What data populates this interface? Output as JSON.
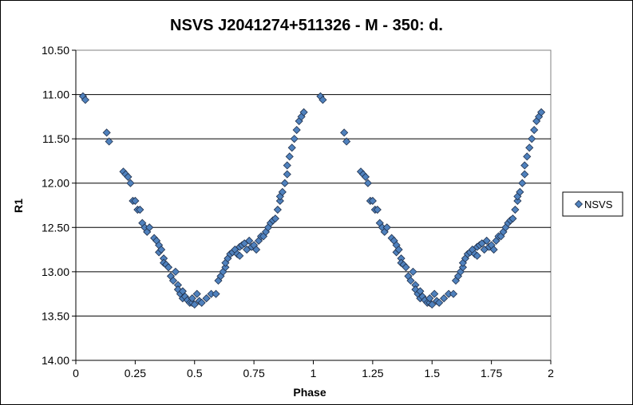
{
  "chart_data": {
    "type": "scatter",
    "title": "NSVS J2041274+511326  - M - 350: d.",
    "xlabel": "Phase",
    "ylabel": "R1",
    "xlim": [
      0,
      2
    ],
    "ylim": [
      10.5,
      14.0
    ],
    "y_inverted": true,
    "x_ticks": [
      "0",
      "0.25",
      "0.5",
      "0.75",
      "1",
      "1.25",
      "1.5",
      "1.75",
      "2"
    ],
    "y_ticks": [
      "10.50",
      "11.00",
      "11.50",
      "12.00",
      "12.50",
      "13.00",
      "13.50",
      "14.00"
    ],
    "grid": "horizontal",
    "legend_position": "right",
    "marker": "diamond",
    "marker_color": "#4F81BD",
    "series": [
      {
        "name": "NSVS",
        "x": [
          0.03,
          0.04,
          0.13,
          0.14,
          0.2,
          0.21,
          0.22,
          0.23,
          0.24,
          0.25,
          0.26,
          0.27,
          0.28,
          0.29,
          0.3,
          0.31,
          0.33,
          0.34,
          0.35,
          0.35,
          0.36,
          0.37,
          0.37,
          0.38,
          0.39,
          0.4,
          0.41,
          0.42,
          0.43,
          0.43,
          0.44,
          0.45,
          0.45,
          0.46,
          0.47,
          0.48,
          0.49,
          0.49,
          0.5,
          0.51,
          0.52,
          0.53,
          0.55,
          0.57,
          0.59,
          0.6,
          0.61,
          0.62,
          0.63,
          0.63,
          0.64,
          0.65,
          0.66,
          0.67,
          0.68,
          0.69,
          0.69,
          0.7,
          0.71,
          0.72,
          0.73,
          0.74,
          0.75,
          0.76,
          0.77,
          0.78,
          0.79,
          0.8,
          0.81,
          0.82,
          0.83,
          0.84,
          0.85,
          0.86,
          0.86,
          0.87,
          0.88,
          0.89,
          0.89,
          0.9,
          0.91,
          0.92,
          0.93,
          0.94,
          0.95,
          0.96,
          1.03,
          1.04,
          1.13,
          1.14,
          1.2,
          1.21,
          1.22,
          1.23,
          1.24,
          1.25,
          1.26,
          1.27,
          1.28,
          1.29,
          1.3,
          1.31,
          1.33,
          1.34,
          1.35,
          1.35,
          1.36,
          1.37,
          1.37,
          1.38,
          1.39,
          1.4,
          1.41,
          1.42,
          1.43,
          1.43,
          1.44,
          1.45,
          1.45,
          1.46,
          1.47,
          1.48,
          1.49,
          1.49,
          1.5,
          1.51,
          1.52,
          1.53,
          1.55,
          1.57,
          1.59,
          1.6,
          1.61,
          1.62,
          1.63,
          1.63,
          1.64,
          1.65,
          1.66,
          1.67,
          1.68,
          1.69,
          1.69,
          1.7,
          1.71,
          1.72,
          1.73,
          1.74,
          1.75,
          1.76,
          1.77,
          1.78,
          1.79,
          1.8,
          1.81,
          1.82,
          1.83,
          1.84,
          1.85,
          1.86,
          1.86,
          1.87,
          1.88,
          1.89,
          1.89,
          1.9,
          1.91,
          1.92,
          1.93,
          1.94,
          1.95,
          1.96
        ],
        "y": [
          11.02,
          11.06,
          11.43,
          11.53,
          11.87,
          11.9,
          11.93,
          12.0,
          12.2,
          12.2,
          12.3,
          12.3,
          12.45,
          12.5,
          12.55,
          12.5,
          12.62,
          12.65,
          12.7,
          12.78,
          12.75,
          12.85,
          12.9,
          12.92,
          12.95,
          13.05,
          13.1,
          13.0,
          13.15,
          13.2,
          13.25,
          13.22,
          13.3,
          13.28,
          13.32,
          13.35,
          13.35,
          13.3,
          13.37,
          13.25,
          13.33,
          13.35,
          13.3,
          13.25,
          13.25,
          13.1,
          13.05,
          13.0,
          12.95,
          12.9,
          12.85,
          12.8,
          12.78,
          12.75,
          12.8,
          12.72,
          12.82,
          12.7,
          12.68,
          12.75,
          12.65,
          12.72,
          12.7,
          12.75,
          12.65,
          12.6,
          12.6,
          12.55,
          12.5,
          12.45,
          12.42,
          12.4,
          12.3,
          12.2,
          12.15,
          12.1,
          12.0,
          11.9,
          11.8,
          11.7,
          11.6,
          11.5,
          11.4,
          11.3,
          11.25,
          11.2,
          11.02,
          11.06,
          11.43,
          11.53,
          11.87,
          11.9,
          11.93,
          12.0,
          12.2,
          12.2,
          12.3,
          12.3,
          12.45,
          12.5,
          12.55,
          12.5,
          12.62,
          12.65,
          12.7,
          12.78,
          12.75,
          12.85,
          12.9,
          12.92,
          12.95,
          13.05,
          13.1,
          13.0,
          13.15,
          13.2,
          13.25,
          13.22,
          13.3,
          13.28,
          13.32,
          13.35,
          13.35,
          13.3,
          13.37,
          13.25,
          13.33,
          13.35,
          13.3,
          13.25,
          13.25,
          13.1,
          13.05,
          13.0,
          12.95,
          12.9,
          12.85,
          12.8,
          12.78,
          12.75,
          12.8,
          12.72,
          12.82,
          12.7,
          12.68,
          12.75,
          12.65,
          12.72,
          12.7,
          12.75,
          12.65,
          12.6,
          12.6,
          12.55,
          12.5,
          12.45,
          12.42,
          12.4,
          12.3,
          12.2,
          12.15,
          12.1,
          12.0,
          11.9,
          11.8,
          11.7,
          11.6,
          11.5,
          11.4,
          11.3,
          11.25,
          11.2
        ]
      }
    ]
  }
}
